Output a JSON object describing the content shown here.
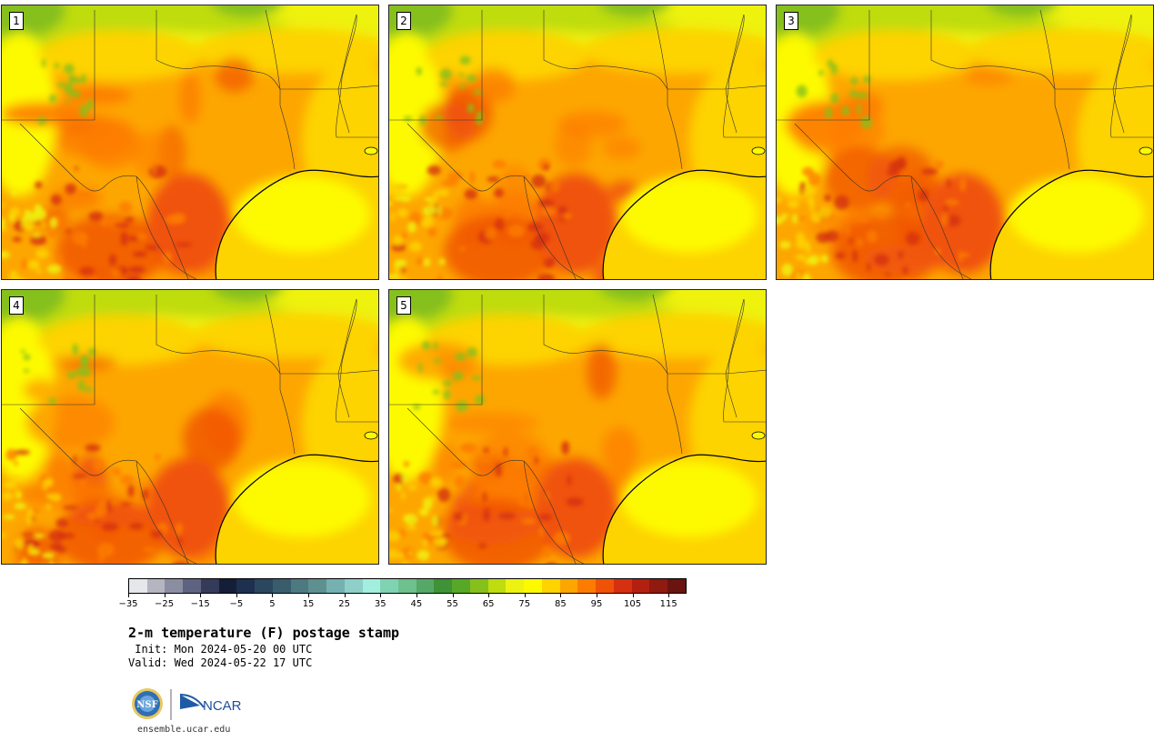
{
  "panels": [
    {
      "label": "1"
    },
    {
      "label": "2"
    },
    {
      "label": "3"
    },
    {
      "label": "4"
    },
    {
      "label": "5"
    }
  ],
  "colorbar": {
    "colors": [
      "#e6e7ea",
      "#b4b5c0",
      "#8b8ea0",
      "#5d6380",
      "#343b5a",
      "#141e36",
      "#1d3050",
      "#2a475f",
      "#3a5d6d",
      "#4d7a80",
      "#5f9090",
      "#75b1b0",
      "#8ecfc8",
      "#a2efe0",
      "#80d3b2",
      "#6ec08d",
      "#55a867",
      "#3f9236",
      "#57a826",
      "#86c01c",
      "#bfdc0e",
      "#eef210",
      "#fdfa00",
      "#fdd300",
      "#fda600",
      "#fd7c00",
      "#f05208",
      "#d53010",
      "#b32010",
      "#901910",
      "#6a1410"
    ],
    "ticks": [
      "−35",
      "−25",
      "−15",
      "−5",
      "5",
      "15",
      "25",
      "35",
      "45",
      "55",
      "65",
      "75",
      "85",
      "95",
      "105",
      "115"
    ],
    "tick_start_index": 0,
    "tick_step": 2
  },
  "title": "2-m temperature (F) postage stamp",
  "init_line": " Init: Mon 2024-05-20 00 UTC",
  "valid_line": "Valid: Wed 2024-05-22 17 UTC",
  "logo": {
    "nsf_text": "NSF",
    "ncar_text": "NCAR",
    "url": "ensemble.ucar.edu"
  }
}
